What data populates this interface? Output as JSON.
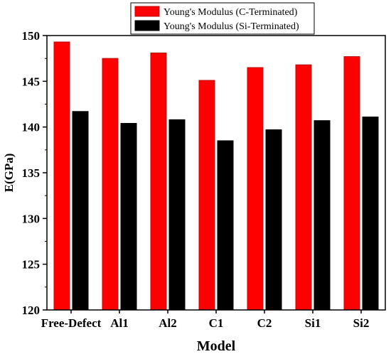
{
  "chart_data": {
    "type": "bar",
    "title": "",
    "xlabel": "Model",
    "ylabel": "E(GPa)",
    "categories": [
      "Free-Defect",
      "Al1",
      "Al2",
      "C1",
      "C2",
      "Si1",
      "Si2"
    ],
    "ylim": [
      120,
      150
    ],
    "yticks": [
      "120",
      "125",
      "130",
      "135",
      "140",
      "145",
      "150"
    ],
    "legend_position": "top-right (above plot)",
    "grid": false,
    "series": [
      {
        "name": "Young's Modulus (C-Terminated)",
        "color": "#ff0000",
        "values": [
          149.3,
          147.5,
          148.1,
          145.1,
          146.5,
          146.8,
          147.7
        ]
      },
      {
        "name": "Young's Modulus (Si-Terminated)",
        "color": "#000000",
        "values": [
          141.7,
          140.4,
          140.8,
          138.5,
          139.7,
          140.7,
          141.1
        ]
      }
    ]
  }
}
